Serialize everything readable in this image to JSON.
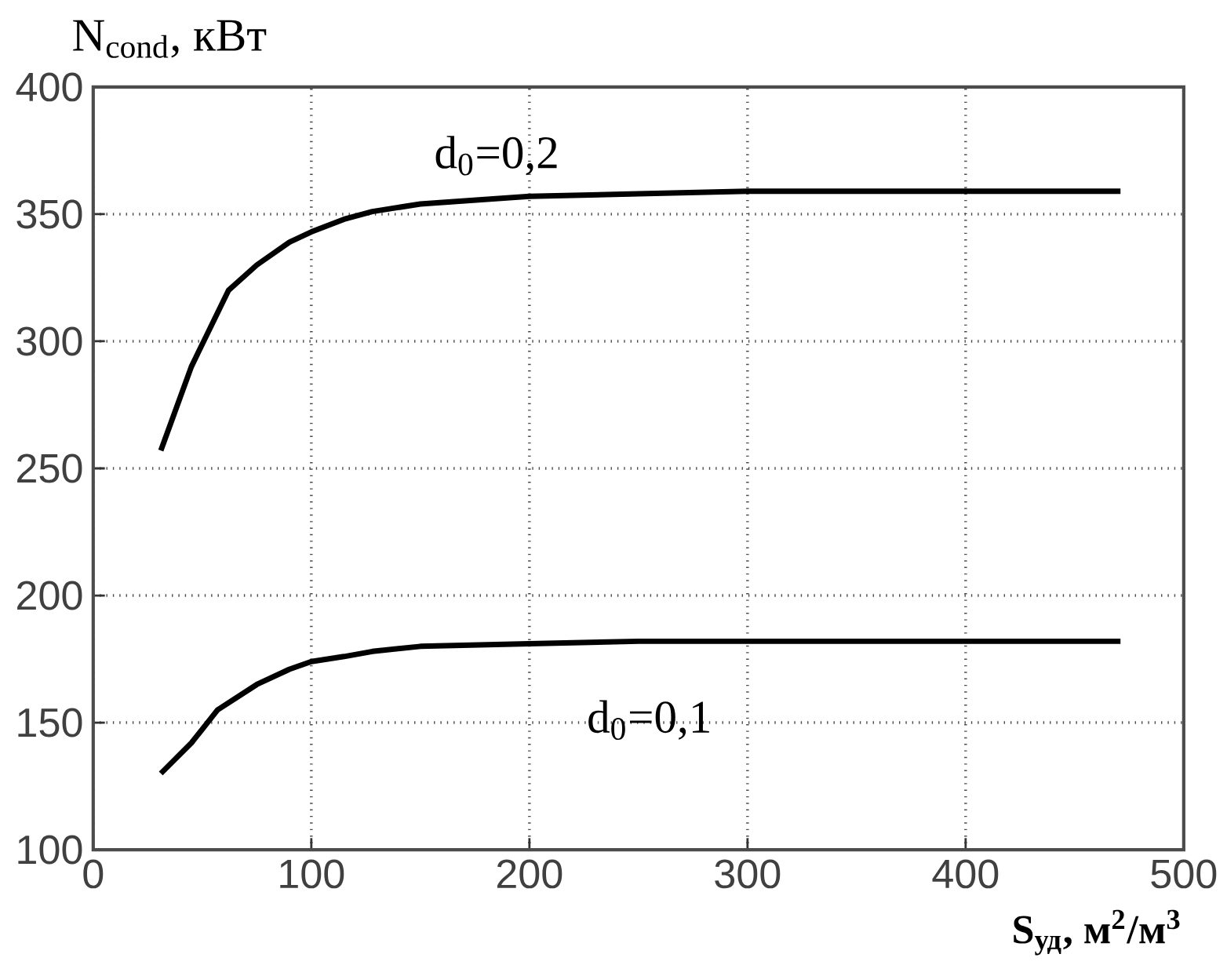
{
  "chart_data": {
    "type": "line",
    "ylabel": "N$_{cond}$, кВт",
    "xlabel": "S$_{уд}$, м$^{2}$/м$^{3}$",
    "xlim": [
      0,
      500
    ],
    "ylim": [
      100,
      400
    ],
    "xticks": [
      0,
      100,
      200,
      300,
      400,
      500
    ],
    "yticks": [
      100,
      150,
      200,
      250,
      300,
      350,
      400
    ],
    "grid": true,
    "marker": "none",
    "line_style": "solid",
    "series": [
      {
        "color": "#000000",
        "x": [
          31,
          45,
          62,
          75,
          90,
          100,
          115,
          128,
          150,
          200,
          250,
          300,
          400,
          471
        ],
        "values": [
          257,
          290,
          320,
          330,
          339,
          343,
          348,
          351,
          354,
          357,
          358,
          359,
          359,
          359
        ]
      },
      {
        "color": "#000000",
        "x": [
          31,
          45,
          57,
          75,
          90,
          100,
          115,
          128,
          150,
          200,
          250,
          300,
          400,
          471
        ],
        "values": [
          130,
          142,
          155,
          165,
          171,
          174,
          176,
          178,
          180,
          181,
          182,
          182,
          182,
          182
        ]
      }
    ],
    "annotations": [
      "d$_{0}$=0,2",
      "d$_{0}$=0,1"
    ]
  }
}
